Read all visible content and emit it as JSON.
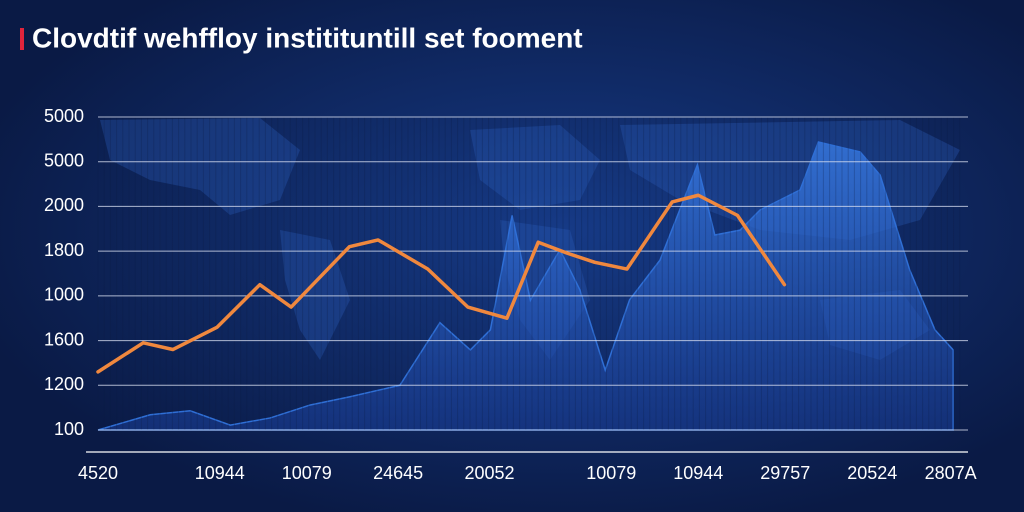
{
  "chart_data": {
    "type": "line",
    "title": "Clovdtif wehffloy institituntill set fooment",
    "xlim": [
      0,
      100
    ],
    "xticks": [
      {
        "value": 0,
        "label": "4520"
      },
      {
        "value": 14,
        "label": "10944"
      },
      {
        "value": 24,
        "label": "10079"
      },
      {
        "value": 34.5,
        "label": "24645"
      },
      {
        "value": 45,
        "label": "20052"
      },
      {
        "value": 59,
        "label": "10079"
      },
      {
        "value": 69,
        "label": "10944"
      },
      {
        "value": 79,
        "label": "29757"
      },
      {
        "value": 89,
        "label": "20524"
      },
      {
        "value": 98,
        "label": "2807A"
      }
    ],
    "ylim": [
      0,
      7
    ],
    "yticks": [
      {
        "value": 0,
        "label": "100"
      },
      {
        "value": 1,
        "label": "1200"
      },
      {
        "value": 2,
        "label": "1600"
      },
      {
        "value": 3,
        "label": "1000"
      },
      {
        "value": 4,
        "label": "1800"
      },
      {
        "value": 5,
        "label": "2000"
      },
      {
        "value": 6,
        "label": "5000"
      },
      {
        "value": 7,
        "label": "5000"
      }
    ],
    "grid": true,
    "series": [
      {
        "type": "area",
        "color": "#2f6fd6",
        "x": [
          0,
          6.0,
          10.6,
          15.2,
          19.8,
          24.4,
          28.9,
          34.7,
          39.3,
          42.8,
          45.1,
          47.6,
          49.7,
          53.1,
          55.4,
          58.3,
          61.1,
          64.6,
          68.9,
          70.9,
          73.8,
          76.1,
          80.7,
          82.8,
          87.6,
          89.9,
          93.3,
          96.2,
          98.3
        ],
        "values": [
          0,
          0.34,
          0.43,
          0.11,
          0.27,
          0.56,
          0.74,
          1.0,
          2.4,
          1.79,
          2.24,
          4.8,
          2.9,
          4.03,
          3.13,
          1.34,
          2.91,
          3.8,
          5.93,
          4.36,
          4.47,
          4.92,
          5.37,
          6.44,
          6.22,
          5.7,
          3.58,
          2.24,
          1.79
        ]
      },
      {
        "type": "line",
        "color": "#f0883e",
        "x": [
          0,
          5.2,
          8.6,
          13.7,
          18.6,
          22.2,
          28.9,
          32.2,
          37.9,
          42.5,
          47,
          50.6,
          54,
          57.1,
          60.8,
          66,
          69,
          73.5,
          78.9
        ],
        "values": [
          1.3,
          1.95,
          1.8,
          2.3,
          3.25,
          2.75,
          4.1,
          4.25,
          3.6,
          2.75,
          2.5,
          4.2,
          3.95,
          3.75,
          3.6,
          5.1,
          5.25,
          4.8,
          3.25
        ]
      }
    ]
  }
}
